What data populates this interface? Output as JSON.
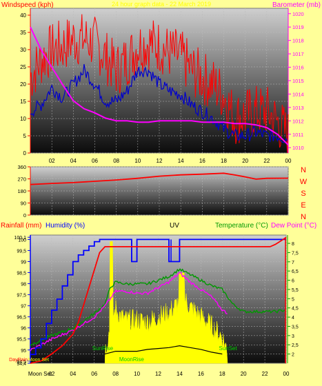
{
  "chart_data": [
    {
      "type": "line",
      "title": "24 hour graph data - 22 March 2019",
      "ylabel": "Windspeed (kph)",
      "y2label": "Barometer (mb)",
      "ylim": [
        0,
        42
      ],
      "y2lim": [
        1009.6,
        1020.4
      ],
      "yticks": [
        0,
        5,
        10,
        15,
        20,
        25,
        30,
        35,
        40
      ],
      "y2ticks": [
        1010,
        1011,
        1012,
        1013,
        1014,
        1015,
        1016,
        1017,
        1018,
        1019,
        1020
      ],
      "x_tick_labels": [
        "02",
        "04",
        "06",
        "08",
        "10",
        "12",
        "14",
        "16",
        "18",
        "20",
        "22",
        "00"
      ],
      "xlim": [
        0,
        24
      ],
      "series": [
        {
          "name": "gust",
          "axis": "y",
          "color": "#ff0000",
          "style": "noisy-bars",
          "x": [
            0,
            1,
            2,
            3,
            4,
            5,
            6,
            7,
            8,
            9,
            10,
            11,
            12,
            13,
            14,
            15,
            16,
            17,
            18,
            19,
            20,
            21,
            22,
            23,
            24
          ],
          "values": [
            22,
            27,
            30,
            31,
            33,
            33,
            32,
            28,
            24,
            27,
            31,
            32,
            31,
            29,
            28,
            24,
            22,
            20,
            17,
            10,
            11,
            12,
            12,
            9,
            5
          ]
        },
        {
          "name": "wind",
          "axis": "y",
          "color": "#0000cc",
          "x": [
            0,
            1,
            2,
            3,
            4,
            5,
            6,
            7,
            8,
            9,
            10,
            11,
            12,
            13,
            14,
            15,
            16,
            17,
            18,
            19,
            20,
            21,
            22,
            23,
            24
          ],
          "values": [
            12,
            14,
            19,
            16,
            20,
            24,
            20,
            15,
            15,
            18,
            24,
            24,
            20,
            18,
            17,
            14,
            12,
            10,
            7,
            5,
            5,
            6,
            5,
            5,
            4
          ]
        },
        {
          "name": "pressure",
          "axis": "y2",
          "color": "#ff00ff",
          "x": [
            0,
            1,
            2,
            3,
            4,
            5,
            6,
            7,
            8,
            9,
            10,
            11,
            12,
            13,
            14,
            15,
            16,
            17,
            18,
            19,
            20,
            21,
            22,
            23,
            24
          ],
          "values": [
            1019.0,
            1017.3,
            1016.0,
            1014.7,
            1013.5,
            1012.9,
            1012.6,
            1012.2,
            1012.0,
            1012.0,
            1011.9,
            1011.9,
            1012.0,
            1012.0,
            1012.0,
            1012.0,
            1011.9,
            1011.9,
            1011.9,
            1011.8,
            1011.8,
            1011.7,
            1011.5,
            1011.0,
            1010.2
          ]
        }
      ]
    },
    {
      "type": "line",
      "ylabel": "",
      "ylim": [
        0,
        360
      ],
      "yticks": [
        0,
        90,
        180,
        270,
        360
      ],
      "direction_labels": [
        "N",
        "W",
        "S",
        "E",
        "N"
      ],
      "xlim": [
        0,
        24
      ],
      "series": [
        {
          "name": "direction",
          "color": "#ff0000",
          "x": [
            0,
            2,
            4,
            6,
            8,
            10,
            12,
            14,
            16,
            18,
            19,
            20,
            21,
            22,
            24
          ],
          "values": [
            228,
            236,
            242,
            252,
            262,
            274,
            290,
            300,
            305,
            312,
            300,
            285,
            268,
            274,
            275
          ]
        }
      ]
    },
    {
      "type": "line",
      "rain_label": "Rainfall (mm)",
      "humidity_label": "Humidity (%)",
      "uv_label": "UV",
      "temp_label": "Temperature (°C)",
      "dew_label": "Dew Point (°C)",
      "xlim": [
        0,
        24
      ],
      "rain_ylim": [
        0,
        1.1
      ],
      "hum_ylim": [
        94.4,
        100.2
      ],
      "hum_ticks": [
        94.4,
        94.5,
        95,
        95.5,
        96,
        96.5,
        97,
        97.5,
        98,
        98.5,
        99,
        99.5,
        100,
        100.1
      ],
      "hum_tick_labels": [
        "94,4",
        "94,5",
        "95",
        "95,5",
        "96",
        "96,5",
        "97",
        "97,5",
        "98",
        "98,5",
        "99",
        "99,5",
        "100",
        "100,1"
      ],
      "temp_ylim": [
        1.5,
        8.45
      ],
      "temp_ticks": [
        2,
        2.5,
        3,
        3.5,
        4,
        4.5,
        5,
        5.5,
        6,
        6.5,
        7,
        7.5,
        8
      ],
      "temp_tick_labels": [
        "2",
        "2,5",
        "3",
        "3,5",
        "4",
        "4,5",
        "5",
        "5,5",
        "6",
        "6,5",
        "7",
        "7,5",
        "8"
      ],
      "x_tick_labels": [
        "Moon Set",
        "02",
        "04",
        "06",
        "08",
        "10",
        "12",
        "14",
        "16",
        "18",
        "20",
        "22",
        "00"
      ],
      "event_labels": {
        "sunrise": "SunRise",
        "sunset": "SunSet",
        "moonrise": "MoonRise",
        "moonset": "Moon Set",
        "day_rain": "DayRain"
      },
      "series": [
        {
          "name": "rainfall",
          "axis": "rain",
          "color": "#ff0000",
          "x": [
            0,
            1,
            2,
            3,
            4,
            4.5,
            5,
            5.5,
            6,
            6.5,
            7,
            22,
            22.5,
            23,
            23.5,
            24
          ],
          "values": [
            0,
            0.02,
            0.08,
            0.15,
            0.25,
            0.35,
            0.5,
            0.65,
            0.8,
            0.95,
            1.0,
            1.0,
            1.0,
            1.02,
            1.05,
            1.08
          ]
        },
        {
          "name": "humidity",
          "axis": "hum",
          "color": "#0000ff",
          "style": "step",
          "x": [
            0,
            0.5,
            1,
            1.5,
            2,
            2.5,
            3,
            3.5,
            4,
            4.5,
            5,
            5.5,
            6,
            6.5,
            7,
            8,
            9,
            9.5,
            10,
            11,
            12,
            13,
            14,
            15,
            16,
            24
          ],
          "values": [
            94.8,
            95.1,
            95.5,
            96.2,
            96.8,
            97.3,
            97.9,
            98.4,
            99.0,
            99.3,
            99.5,
            99.7,
            99.9,
            100.0,
            100.0,
            100.0,
            100.0,
            99.0,
            100.0,
            100.0,
            100.0,
            99.0,
            100.0,
            100.0,
            100.0,
            100.0
          ]
        },
        {
          "name": "uv",
          "axis": "temp",
          "color": "#ffff00",
          "style": "area",
          "x": [
            7,
            7.6,
            8,
            8.5,
            9,
            10,
            11,
            12,
            13,
            14,
            14.5,
            15,
            16,
            17,
            18,
            18.5
          ],
          "values": [
            1.9,
            3.5,
            4.2,
            3.8,
            3.6,
            3.6,
            3.5,
            3.8,
            4.0,
            4.6,
            4.7,
            4.3,
            3.8,
            3.3,
            2.7,
            1.9
          ]
        },
        {
          "name": "temperature",
          "axis": "temp",
          "color": "#009900",
          "x": [
            0,
            2,
            4,
            6,
            7,
            7.5,
            8,
            9,
            10,
            11,
            12,
            13,
            14,
            15,
            16,
            17,
            18,
            19,
            20,
            21,
            22,
            23,
            24
          ],
          "values": [
            2.5,
            3.0,
            3.4,
            4.2,
            4.7,
            5.6,
            5.9,
            5.8,
            5.8,
            5.8,
            6.0,
            6.2,
            6.6,
            6.3,
            6.0,
            5.7,
            5.5,
            4.7,
            4.3,
            4.3,
            4.3,
            4.3,
            4.4
          ]
        },
        {
          "name": "dewpoint",
          "axis": "temp",
          "color": "#ff00ff",
          "x": [
            0,
            2,
            4,
            6,
            7,
            8,
            9,
            10,
            11,
            12,
            13,
            14,
            15,
            16,
            17,
            18,
            18.5
          ],
          "values": [
            2.2,
            2.8,
            3.3,
            4.0,
            4.6,
            5.4,
            5.4,
            5.3,
            5.3,
            5.6,
            5.9,
            6.4,
            5.9,
            5.5,
            5.1,
            4.4,
            4.2
          ]
        },
        {
          "name": "solar",
          "axis": "temp",
          "color": "#000000",
          "x": [
            7,
            8,
            9,
            10,
            11,
            12,
            13,
            14,
            15,
            16,
            17,
            18
          ],
          "values": [
            2.0,
            2.15,
            2.15,
            2.15,
            2.25,
            2.3,
            2.35,
            2.45,
            2.35,
            2.25,
            2.1,
            2.0
          ]
        }
      ],
      "events": {
        "sunrise": 6.4,
        "sunset": 18.8,
        "moonrise": 9.5,
        "moonset": 0.9
      }
    }
  ]
}
